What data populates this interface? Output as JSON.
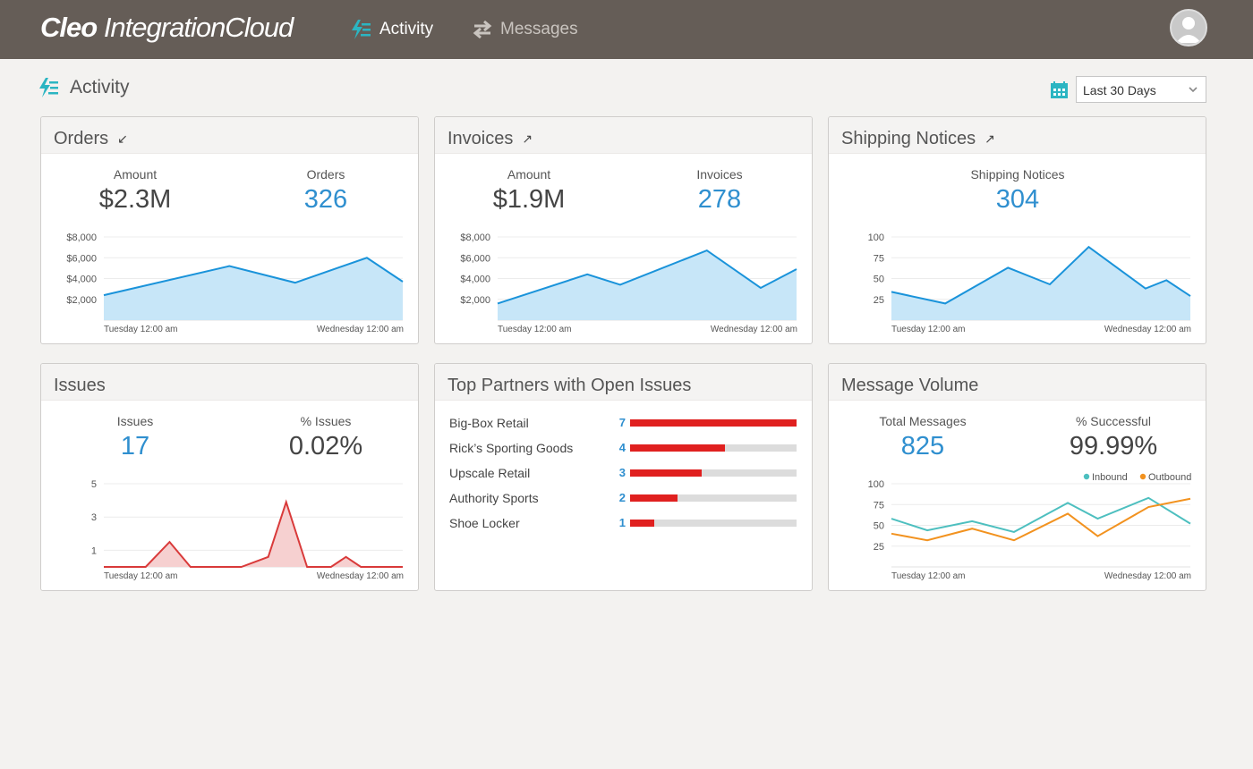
{
  "app": {
    "logo_bold": "Cleo",
    "logo_light": "IntegrationCloud",
    "nav": [
      {
        "label": "Activity",
        "active": true
      },
      {
        "label": "Messages",
        "active": false
      }
    ]
  },
  "page": {
    "title": "Activity",
    "date_range": "Last 30 Days"
  },
  "colors": {
    "accent": "#2f8fcf",
    "teal": "#2bb5c2",
    "topbar": "#655d57",
    "issues": "#d93a3a",
    "inbound": "#4dbfbf",
    "outbound": "#f2921f"
  },
  "icons": {
    "activity": "activity-icon",
    "messages": "swap-arrows-icon",
    "calendar": "calendar-icon",
    "user": "user-icon"
  },
  "cards": {
    "orders": {
      "title": "Orders",
      "arrow": "↙",
      "stat1_label": "Amount",
      "stat1_value": "$2.3M",
      "stat2_label": "Orders",
      "stat2_value": "326",
      "x_start": "Tuesday 12:00 am",
      "x_end": "Wednesday 12:00 am"
    },
    "invoices": {
      "title": "Invoices",
      "arrow": "↗",
      "stat1_label": "Amount",
      "stat1_value": "$1.9M",
      "stat2_label": "Invoices",
      "stat2_value": "278",
      "x_start": "Tuesday 12:00 am",
      "x_end": "Wednesday 12:00 am"
    },
    "shipping": {
      "title": "Shipping Notices",
      "arrow": "↗",
      "stat1_label": "Shipping Notices",
      "stat1_value": "304",
      "x_start": "Tuesday 12:00 am",
      "x_end": "Wednesday 12:00 am"
    },
    "issues": {
      "title": "Issues",
      "stat1_label": "Issues",
      "stat1_value": "17",
      "stat2_label": "% Issues",
      "stat2_value": "0.02%",
      "x_start": "Tuesday 12:00 am",
      "x_end": "Wednesday 12:00 am"
    },
    "partners": {
      "title": "Top Partners with Open Issues",
      "rows": [
        {
          "name": "Big-Box Retail",
          "count": 7
        },
        {
          "name": "Rick’s Sporting Goods",
          "count": 4
        },
        {
          "name": "Upscale Retail",
          "count": 3
        },
        {
          "name": "Authority Sports",
          "count": 2
        },
        {
          "name": "Shoe Locker",
          "count": 1
        }
      ],
      "max": 7
    },
    "volume": {
      "title": "Message Volume",
      "stat1_label": "Total Messages",
      "stat1_value": "825",
      "stat2_label": "% Successful",
      "stat2_value": "99.99%",
      "legend_inbound": "Inbound",
      "legend_outbound": "Outbound",
      "x_start": "Tuesday 12:00 am",
      "x_end": "Wednesday 12:00 am"
    }
  },
  "chart_data": [
    {
      "id": "orders",
      "type": "area",
      "yticks": [
        2000,
        4000,
        6000,
        8000
      ],
      "ytick_labels": [
        "$2,000",
        "$4,000",
        "$6,000",
        "$8,000"
      ],
      "ylim": [
        0,
        8000
      ],
      "xlabels": [
        "Tuesday 12:00 am",
        "Wednesday 12:00 am"
      ],
      "values": [
        2400,
        5200,
        3600,
        6000,
        3700
      ],
      "x": [
        0,
        0.42,
        0.64,
        0.88,
        1.0
      ]
    },
    {
      "id": "invoices",
      "type": "area",
      "yticks": [
        2000,
        4000,
        6000,
        8000
      ],
      "ytick_labels": [
        "$2,000",
        "$4,000",
        "$6,000",
        "$8,000"
      ],
      "ylim": [
        0,
        8000
      ],
      "xlabels": [
        "Tuesday 12:00 am",
        "Wednesday 12:00 am"
      ],
      "values": [
        1600,
        4400,
        3400,
        6700,
        3100,
        4900
      ],
      "x": [
        0,
        0.3,
        0.41,
        0.7,
        0.88,
        1.0
      ]
    },
    {
      "id": "shipping",
      "type": "area",
      "yticks": [
        25,
        50,
        75,
        100
      ],
      "ytick_labels": [
        "25",
        "50",
        "75",
        "100"
      ],
      "ylim": [
        0,
        100
      ],
      "xlabels": [
        "Tuesday 12:00 am",
        "Wednesday 12:00 am"
      ],
      "values": [
        34,
        20,
        63,
        43,
        88,
        38,
        48,
        29
      ],
      "x": [
        0,
        0.18,
        0.39,
        0.53,
        0.66,
        0.85,
        0.92,
        1.0
      ]
    },
    {
      "id": "issues",
      "type": "area",
      "yticks": [
        1,
        3,
        5
      ],
      "ytick_labels": [
        "1",
        "3",
        "5"
      ],
      "ylim": [
        0,
        5
      ],
      "xlabels": [
        "Tuesday 12:00 am",
        "Wednesday 12:00 am"
      ],
      "values": [
        0,
        0,
        1.5,
        0,
        0,
        0.6,
        3.9,
        0,
        0,
        0.6,
        0,
        0
      ],
      "x": [
        0,
        0.14,
        0.22,
        0.29,
        0.46,
        0.55,
        0.61,
        0.68,
        0.76,
        0.81,
        0.86,
        1.0
      ]
    },
    {
      "id": "volume",
      "type": "line",
      "yticks": [
        25,
        50,
        75,
        100
      ],
      "ytick_labels": [
        "25",
        "50",
        "75",
        "100"
      ],
      "ylim": [
        0,
        100
      ],
      "xlabels": [
        "Tuesday 12:00 am",
        "Wednesday 12:00 am"
      ],
      "series": [
        {
          "name": "Inbound",
          "values": [
            58,
            44,
            55,
            42,
            77,
            58,
            83,
            52
          ],
          "x": [
            0,
            0.12,
            0.27,
            0.41,
            0.59,
            0.69,
            0.86,
            1.0
          ]
        },
        {
          "name": "Outbound",
          "values": [
            40,
            32,
            46,
            32,
            64,
            37,
            72,
            82
          ],
          "x": [
            0,
            0.12,
            0.27,
            0.41,
            0.59,
            0.69,
            0.86,
            1.0
          ]
        }
      ]
    }
  ]
}
